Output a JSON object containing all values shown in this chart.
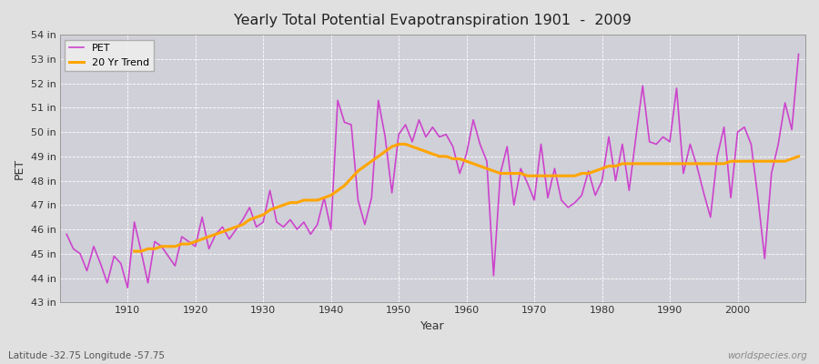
{
  "title": "Yearly Total Potential Evapotranspiration 1901  -  2009",
  "ylabel": "PET",
  "xlabel": "Year",
  "subtitle": "Latitude -32.75 Longitude -57.75",
  "watermark": "worldspecies.org",
  "pet_color": "#CC44CC",
  "trend_color": "#FFA500",
  "bg_color": "#e0e0e0",
  "plot_bg": "#d0d0d8",
  "ylim_min": 43,
  "ylim_max": 54,
  "yticks": [
    43,
    44,
    45,
    46,
    47,
    48,
    49,
    50,
    51,
    52,
    53,
    54
  ],
  "years": [
    1901,
    1902,
    1903,
    1904,
    1905,
    1906,
    1907,
    1908,
    1909,
    1910,
    1911,
    1912,
    1913,
    1914,
    1915,
    1916,
    1917,
    1918,
    1919,
    1920,
    1921,
    1922,
    1923,
    1924,
    1925,
    1926,
    1927,
    1928,
    1929,
    1930,
    1931,
    1932,
    1933,
    1934,
    1935,
    1936,
    1937,
    1938,
    1939,
    1940,
    1941,
    1942,
    1943,
    1944,
    1945,
    1946,
    1947,
    1948,
    1949,
    1950,
    1951,
    1952,
    1953,
    1954,
    1955,
    1956,
    1957,
    1958,
    1959,
    1960,
    1961,
    1962,
    1963,
    1964,
    1965,
    1966,
    1967,
    1968,
    1969,
    1970,
    1971,
    1972,
    1973,
    1974,
    1975,
    1976,
    1977,
    1978,
    1979,
    1980,
    1981,
    1982,
    1983,
    1984,
    1985,
    1986,
    1987,
    1988,
    1989,
    1990,
    1991,
    1992,
    1993,
    1994,
    1995,
    1996,
    1997,
    1998,
    1999,
    2000,
    2001,
    2002,
    2003,
    2004,
    2005,
    2006,
    2007,
    2008,
    2009
  ],
  "pet_values": [
    45.8,
    45.2,
    45.0,
    44.3,
    45.3,
    44.6,
    43.8,
    44.9,
    44.6,
    43.6,
    46.3,
    45.1,
    43.8,
    45.5,
    45.3,
    44.9,
    44.5,
    45.7,
    45.5,
    45.3,
    46.5,
    45.2,
    45.8,
    46.1,
    45.6,
    46.0,
    46.4,
    46.9,
    46.1,
    46.3,
    47.6,
    46.3,
    46.1,
    46.4,
    46.0,
    46.3,
    45.8,
    46.2,
    47.3,
    46.0,
    51.3,
    50.4,
    50.3,
    47.2,
    46.2,
    47.3,
    51.3,
    49.8,
    47.5,
    49.9,
    50.3,
    49.6,
    50.5,
    49.8,
    50.2,
    49.8,
    49.9,
    49.4,
    48.3,
    49.1,
    50.5,
    49.5,
    48.8,
    44.1,
    48.3,
    49.4,
    47.0,
    48.5,
    47.9,
    47.2,
    49.5,
    47.3,
    48.5,
    47.2,
    46.9,
    47.1,
    47.4,
    48.4,
    47.4,
    48.0,
    49.8,
    48.0,
    49.5,
    47.6,
    49.8,
    51.9,
    49.6,
    49.5,
    49.8,
    49.6,
    51.8,
    48.3,
    49.5,
    48.6,
    47.5,
    46.5,
    49.0,
    50.2,
    47.3,
    50.0,
    50.2,
    49.5,
    47.3,
    44.8,
    48.3,
    49.5,
    51.2,
    50.1,
    53.2
  ],
  "trend_values": [
    null,
    null,
    null,
    null,
    null,
    null,
    null,
    null,
    null,
    null,
    45.1,
    45.1,
    45.2,
    45.2,
    45.3,
    45.3,
    45.3,
    45.4,
    45.4,
    45.5,
    45.6,
    45.7,
    45.8,
    45.9,
    46.0,
    46.1,
    46.2,
    46.4,
    46.5,
    46.6,
    46.8,
    46.9,
    47.0,
    47.1,
    47.1,
    47.2,
    47.2,
    47.2,
    47.3,
    47.4,
    47.6,
    47.8,
    48.1,
    48.4,
    48.6,
    48.8,
    49.0,
    49.2,
    49.4,
    49.5,
    49.5,
    49.4,
    49.3,
    49.2,
    49.1,
    49.0,
    49.0,
    48.9,
    48.9,
    48.8,
    48.7,
    48.6,
    48.5,
    48.4,
    48.3,
    48.3,
    48.3,
    48.3,
    48.2,
    48.2,
    48.2,
    48.2,
    48.2,
    48.2,
    48.2,
    48.2,
    48.3,
    48.3,
    48.4,
    48.5,
    48.6,
    48.6,
    48.7,
    48.7,
    48.7,
    48.7,
    48.7,
    48.7,
    48.7,
    48.7,
    48.7,
    48.7,
    48.7,
    48.7,
    48.7,
    48.7,
    48.7,
    48.7,
    48.8,
    48.8,
    48.8,
    48.8,
    48.8,
    48.8,
    48.8,
    48.8,
    48.8,
    48.9,
    49.0
  ]
}
